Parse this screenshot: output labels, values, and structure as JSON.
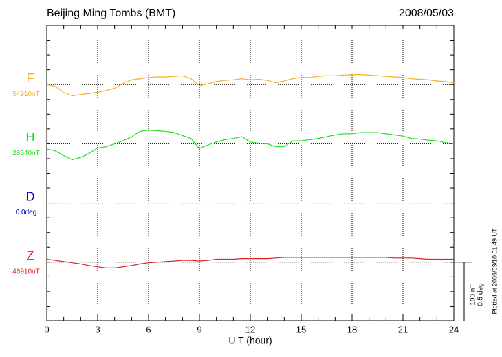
{
  "chart_data": {
    "type": "line",
    "title": "Beijing Ming Tombs (BMT)",
    "date": "2008/05/03",
    "xlabel": "U T (hour)",
    "note": "Plotted at 2009/03/10 01:49 UT",
    "xlim": [
      0,
      24
    ],
    "xticks": [
      0,
      3,
      6,
      9,
      12,
      15,
      18,
      21,
      24
    ],
    "grid": true,
    "scale": {
      "value": 100,
      "label": "100 nT"
    },
    "scale_deg": {
      "value": 0.5,
      "label": "0.5 deg"
    },
    "x": [
      0,
      0.5,
      1,
      1.5,
      2,
      2.5,
      3,
      3.5,
      4,
      4.5,
      5,
      5.5,
      6,
      6.5,
      7,
      7.5,
      8,
      8.5,
      9,
      9.5,
      10,
      10.5,
      11,
      11.5,
      12,
      12.5,
      13,
      13.5,
      14,
      14.5,
      15,
      15.5,
      16,
      16.5,
      17,
      17.5,
      18,
      18.5,
      19,
      19.5,
      20,
      20.5,
      21,
      21.5,
      22,
      22.5,
      23,
      23.5,
      24
    ],
    "series": [
      {
        "name": "F",
        "color": "#f0b020",
        "baseline": {
          "value": 54910,
          "label": "54910nT"
        },
        "values": [
          54910,
          54907,
          54897,
          54891,
          54893,
          54895,
          54897,
          54900,
          54904,
          54912,
          54918,
          54920,
          54922,
          54923,
          54923,
          54924,
          54925,
          54920,
          54908,
          54911,
          54915,
          54917,
          54918,
          54920,
          54918,
          54919,
          54917,
          54913,
          54916,
          54920,
          54922,
          54922,
          54924,
          54925,
          54925,
          54926,
          54927,
          54927,
          54926,
          54925,
          54924,
          54923,
          54922,
          54920,
          54919,
          54918,
          54916,
          54915,
          54913
        ]
      },
      {
        "name": "H",
        "color": "#22dd22",
        "baseline": {
          "value": 28540,
          "label": "28540nT"
        },
        "values": [
          28531,
          28528,
          28520,
          28513,
          28517,
          28524,
          28533,
          28535,
          28540,
          28545,
          28552,
          28561,
          28563,
          28562,
          28561,
          28559,
          28554,
          28549,
          28532,
          28538,
          28543,
          28547,
          28549,
          28552,
          28543,
          28541,
          28540,
          28535,
          28535,
          28545,
          28545,
          28547,
          28549,
          28552,
          28555,
          28557,
          28557,
          28559,
          28559,
          28559,
          28557,
          28555,
          28553,
          28549,
          28548,
          28546,
          28545,
          28542,
          28540
        ]
      },
      {
        "name": "D",
        "color": "#0000cc",
        "baseline": {
          "value": 0.0,
          "label": "0.0deg"
        },
        "values": [
          null,
          null,
          null,
          null,
          null,
          null,
          null,
          null,
          null,
          null,
          null,
          null,
          null,
          null,
          null,
          null,
          null,
          null,
          null,
          null,
          null,
          null,
          null,
          null,
          null,
          null,
          null,
          null,
          null,
          null,
          null,
          null,
          null,
          null,
          null,
          null,
          null,
          null,
          null,
          null,
          null,
          null,
          null,
          null,
          null,
          null,
          null,
          null,
          null
        ]
      },
      {
        "name": "Z",
        "color": "#dd2222",
        "baseline": {
          "value": 46910,
          "label": "46910nT"
        },
        "values": [
          46915,
          46913,
          46911,
          46909,
          46907,
          46904,
          46902,
          46900,
          46900,
          46902,
          46904,
          46907,
          46909,
          46910,
          46911,
          46912,
          46913,
          46913,
          46912,
          46913,
          46915,
          46915,
          46915,
          46916,
          46916,
          46916,
          46916,
          46917,
          46918,
          46918,
          46918,
          46918,
          46918,
          46918,
          46918,
          46918,
          46918,
          46918,
          46918,
          46918,
          46918,
          46917,
          46917,
          46917,
          46916,
          46915,
          46915,
          46915,
          46915
        ]
      }
    ]
  }
}
